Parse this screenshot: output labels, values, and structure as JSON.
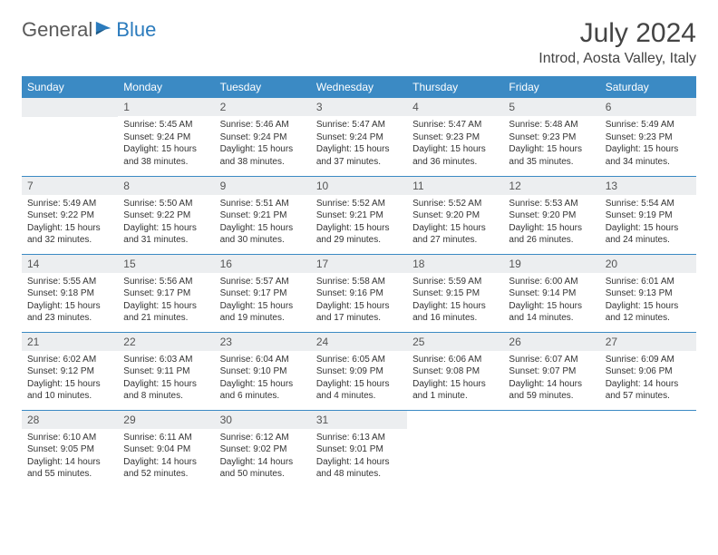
{
  "brand": {
    "name1": "General",
    "name2": "Blue"
  },
  "title": "July 2024",
  "location": "Introd, Aosta Valley, Italy",
  "colors": {
    "header_bg": "#3b8ac4",
    "header_text": "#ffffff",
    "daynum_bg": "#eceef0",
    "border": "#3b8ac4",
    "brand_blue": "#2b7bbd",
    "brand_gray": "#5a5a5a"
  },
  "weekdays": [
    "Sunday",
    "Monday",
    "Tuesday",
    "Wednesday",
    "Thursday",
    "Friday",
    "Saturday"
  ],
  "weeks": [
    [
      {
        "n": "",
        "sr": "",
        "ss": "",
        "dl": ""
      },
      {
        "n": "1",
        "sr": "Sunrise: 5:45 AM",
        "ss": "Sunset: 9:24 PM",
        "dl": "Daylight: 15 hours and 38 minutes."
      },
      {
        "n": "2",
        "sr": "Sunrise: 5:46 AM",
        "ss": "Sunset: 9:24 PM",
        "dl": "Daylight: 15 hours and 38 minutes."
      },
      {
        "n": "3",
        "sr": "Sunrise: 5:47 AM",
        "ss": "Sunset: 9:24 PM",
        "dl": "Daylight: 15 hours and 37 minutes."
      },
      {
        "n": "4",
        "sr": "Sunrise: 5:47 AM",
        "ss": "Sunset: 9:23 PM",
        "dl": "Daylight: 15 hours and 36 minutes."
      },
      {
        "n": "5",
        "sr": "Sunrise: 5:48 AM",
        "ss": "Sunset: 9:23 PM",
        "dl": "Daylight: 15 hours and 35 minutes."
      },
      {
        "n": "6",
        "sr": "Sunrise: 5:49 AM",
        "ss": "Sunset: 9:23 PM",
        "dl": "Daylight: 15 hours and 34 minutes."
      }
    ],
    [
      {
        "n": "7",
        "sr": "Sunrise: 5:49 AM",
        "ss": "Sunset: 9:22 PM",
        "dl": "Daylight: 15 hours and 32 minutes."
      },
      {
        "n": "8",
        "sr": "Sunrise: 5:50 AM",
        "ss": "Sunset: 9:22 PM",
        "dl": "Daylight: 15 hours and 31 minutes."
      },
      {
        "n": "9",
        "sr": "Sunrise: 5:51 AM",
        "ss": "Sunset: 9:21 PM",
        "dl": "Daylight: 15 hours and 30 minutes."
      },
      {
        "n": "10",
        "sr": "Sunrise: 5:52 AM",
        "ss": "Sunset: 9:21 PM",
        "dl": "Daylight: 15 hours and 29 minutes."
      },
      {
        "n": "11",
        "sr": "Sunrise: 5:52 AM",
        "ss": "Sunset: 9:20 PM",
        "dl": "Daylight: 15 hours and 27 minutes."
      },
      {
        "n": "12",
        "sr": "Sunrise: 5:53 AM",
        "ss": "Sunset: 9:20 PM",
        "dl": "Daylight: 15 hours and 26 minutes."
      },
      {
        "n": "13",
        "sr": "Sunrise: 5:54 AM",
        "ss": "Sunset: 9:19 PM",
        "dl": "Daylight: 15 hours and 24 minutes."
      }
    ],
    [
      {
        "n": "14",
        "sr": "Sunrise: 5:55 AM",
        "ss": "Sunset: 9:18 PM",
        "dl": "Daylight: 15 hours and 23 minutes."
      },
      {
        "n": "15",
        "sr": "Sunrise: 5:56 AM",
        "ss": "Sunset: 9:17 PM",
        "dl": "Daylight: 15 hours and 21 minutes."
      },
      {
        "n": "16",
        "sr": "Sunrise: 5:57 AM",
        "ss": "Sunset: 9:17 PM",
        "dl": "Daylight: 15 hours and 19 minutes."
      },
      {
        "n": "17",
        "sr": "Sunrise: 5:58 AM",
        "ss": "Sunset: 9:16 PM",
        "dl": "Daylight: 15 hours and 17 minutes."
      },
      {
        "n": "18",
        "sr": "Sunrise: 5:59 AM",
        "ss": "Sunset: 9:15 PM",
        "dl": "Daylight: 15 hours and 16 minutes."
      },
      {
        "n": "19",
        "sr": "Sunrise: 6:00 AM",
        "ss": "Sunset: 9:14 PM",
        "dl": "Daylight: 15 hours and 14 minutes."
      },
      {
        "n": "20",
        "sr": "Sunrise: 6:01 AM",
        "ss": "Sunset: 9:13 PM",
        "dl": "Daylight: 15 hours and 12 minutes."
      }
    ],
    [
      {
        "n": "21",
        "sr": "Sunrise: 6:02 AM",
        "ss": "Sunset: 9:12 PM",
        "dl": "Daylight: 15 hours and 10 minutes."
      },
      {
        "n": "22",
        "sr": "Sunrise: 6:03 AM",
        "ss": "Sunset: 9:11 PM",
        "dl": "Daylight: 15 hours and 8 minutes."
      },
      {
        "n": "23",
        "sr": "Sunrise: 6:04 AM",
        "ss": "Sunset: 9:10 PM",
        "dl": "Daylight: 15 hours and 6 minutes."
      },
      {
        "n": "24",
        "sr": "Sunrise: 6:05 AM",
        "ss": "Sunset: 9:09 PM",
        "dl": "Daylight: 15 hours and 4 minutes."
      },
      {
        "n": "25",
        "sr": "Sunrise: 6:06 AM",
        "ss": "Sunset: 9:08 PM",
        "dl": "Daylight: 15 hours and 1 minute."
      },
      {
        "n": "26",
        "sr": "Sunrise: 6:07 AM",
        "ss": "Sunset: 9:07 PM",
        "dl": "Daylight: 14 hours and 59 minutes."
      },
      {
        "n": "27",
        "sr": "Sunrise: 6:09 AM",
        "ss": "Sunset: 9:06 PM",
        "dl": "Daylight: 14 hours and 57 minutes."
      }
    ],
    [
      {
        "n": "28",
        "sr": "Sunrise: 6:10 AM",
        "ss": "Sunset: 9:05 PM",
        "dl": "Daylight: 14 hours and 55 minutes."
      },
      {
        "n": "29",
        "sr": "Sunrise: 6:11 AM",
        "ss": "Sunset: 9:04 PM",
        "dl": "Daylight: 14 hours and 52 minutes."
      },
      {
        "n": "30",
        "sr": "Sunrise: 6:12 AM",
        "ss": "Sunset: 9:02 PM",
        "dl": "Daylight: 14 hours and 50 minutes."
      },
      {
        "n": "31",
        "sr": "Sunrise: 6:13 AM",
        "ss": "Sunset: 9:01 PM",
        "dl": "Daylight: 14 hours and 48 minutes."
      },
      {
        "n": "",
        "sr": "",
        "ss": "",
        "dl": ""
      },
      {
        "n": "",
        "sr": "",
        "ss": "",
        "dl": ""
      },
      {
        "n": "",
        "sr": "",
        "ss": "",
        "dl": ""
      }
    ]
  ]
}
